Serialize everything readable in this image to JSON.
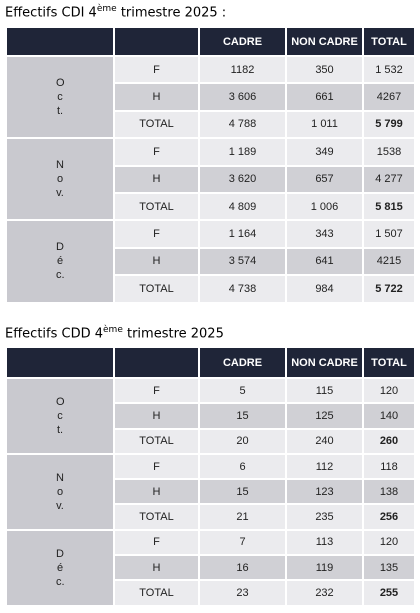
{
  "tables": [
    {
      "title": {
        "prefix": "Effectifs CDI 4",
        "sup": "ème",
        "suffix": " trimestre 2025 :"
      },
      "header": [
        "CADRE",
        "NON CADRE",
        "TOTAL"
      ],
      "groups": [
        {
          "month": "Oct.",
          "rows": [
            [
              "F",
              "1182",
              "350",
              "1 532"
            ],
            [
              "H",
              "3 606",
              "661",
              "4267"
            ],
            [
              "TOTAL",
              "4 788",
              "1 011",
              "5 799"
            ]
          ]
        },
        {
          "month": "Nov.",
          "rows": [
            [
              "F",
              "1 189",
              "349",
              "1538"
            ],
            [
              "H",
              "3 620",
              "657",
              "4 277"
            ],
            [
              "TOTAL",
              "4 809",
              "1 006",
              "5 815"
            ]
          ]
        },
        {
          "month": "Déc.",
          "rows": [
            [
              "F",
              "1 164",
              "343",
              "1 507"
            ],
            [
              "H",
              "3 574",
              "641",
              "4215"
            ],
            [
              "TOTAL",
              "4 738",
              "984",
              "5 722"
            ]
          ]
        }
      ]
    },
    {
      "title": {
        "prefix": "Effectifs CDD 4",
        "sup": "ème",
        "suffix": " trimestre 2025"
      },
      "header": [
        "CADRE",
        "NON CADRE",
        "TOTAL"
      ],
      "groups": [
        {
          "month": "Oct.",
          "rows": [
            [
              "F",
              "5",
              "115",
              "120"
            ],
            [
              "H",
              "15",
              "125",
              "140"
            ],
            [
              "TOTAL",
              "20",
              "240",
              "260"
            ]
          ]
        },
        {
          "month": "Nov.",
          "rows": [
            [
              "F",
              "6",
              "112",
              "118"
            ],
            [
              "H",
              "15",
              "123",
              "138"
            ],
            [
              "TOTAL",
              "21",
              "235",
              "256"
            ]
          ]
        },
        {
          "month": "Déc.",
          "rows": [
            [
              "F",
              "7",
              "113",
              "120"
            ],
            [
              "H",
              "16",
              "119",
              "135"
            ],
            [
              "TOTAL",
              "23",
              "232",
              "255"
            ]
          ]
        }
      ]
    }
  ]
}
